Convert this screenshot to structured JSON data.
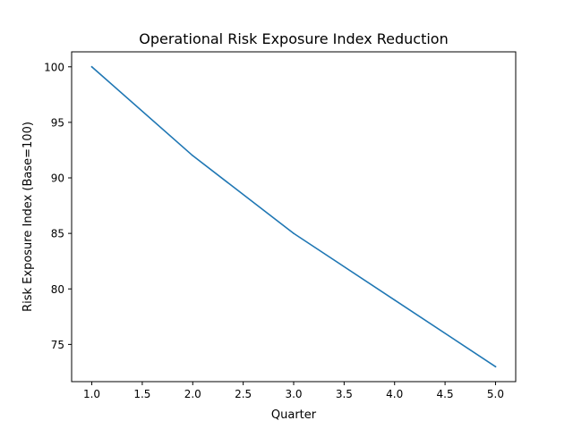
{
  "chart_data": {
    "type": "line",
    "title": "Operational Risk Exposure Index Reduction",
    "xlabel": "Quarter",
    "ylabel": "Risk Exposure Index (Base=100)",
    "xlim": [
      0.8,
      5.2
    ],
    "ylim": [
      71.65,
      101.35
    ],
    "xticks": [
      1.0,
      1.5,
      2.0,
      2.5,
      3.0,
      3.5,
      4.0,
      4.5,
      5.0
    ],
    "xtick_labels": [
      "1.0",
      "1.5",
      "2.0",
      "2.5",
      "3.0",
      "3.5",
      "4.0",
      "4.5",
      "5.0"
    ],
    "yticks": [
      75,
      80,
      85,
      90,
      95,
      100
    ],
    "ytick_labels": [
      "75",
      "80",
      "85",
      "90",
      "95",
      "100"
    ],
    "grid": false,
    "series": [
      {
        "x": [
          1,
          2,
          3,
          4,
          5
        ],
        "values": [
          100,
          92,
          85,
          79,
          73
        ],
        "color": "#1f77b4"
      }
    ]
  }
}
